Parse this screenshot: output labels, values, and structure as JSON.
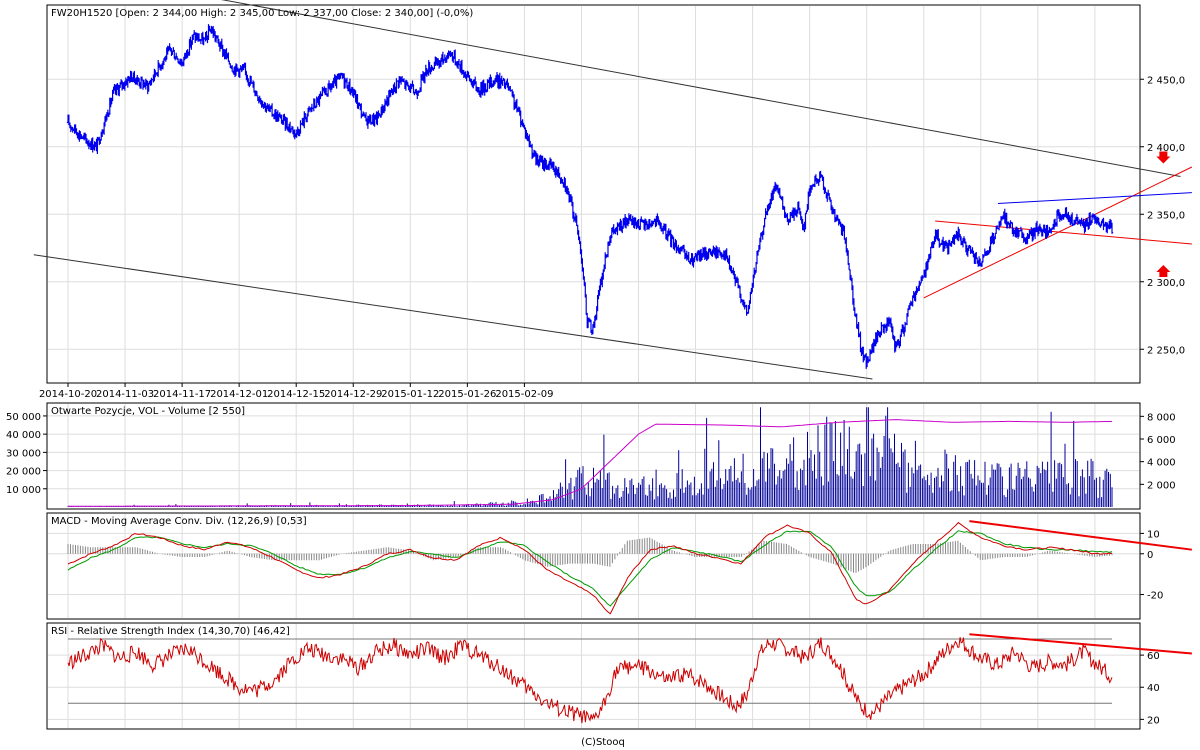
{
  "colors": {
    "price": "#0000ee",
    "volume": "#000099",
    "open_interest": "#cc00cc",
    "macd": "#cc0000",
    "signal": "#009900",
    "histogram": "#888888",
    "rsi": "#cc0000",
    "trend_lines": "#ee0000",
    "channel_lines": "#333333",
    "grid": "#dddddd"
  },
  "footer": "(C)Stooq",
  "chart_data": [
    {
      "type": "candlestick",
      "title": "FW20H1520 [Open: 2 344,00  High: 2 345,00  Low: 2 337,00  Close: 2 340,00] (-0,0%)",
      "x_tick_labels": [
        "2014-10-20",
        "2014-11-03",
        "2014-11-17",
        "2014-12-01",
        "2014-12-15",
        "2014-12-29",
        "2015-01-12",
        "2015-01-26",
        "2015-02-09"
      ],
      "y_tick_labels": [
        "2 450,0",
        "2 400,0",
        "2 350,0",
        "2 300,0",
        "2 250,0"
      ],
      "y_ticks": [
        2450,
        2400,
        2350,
        2300,
        2250
      ],
      "ylim": [
        2225,
        2505
      ],
      "grid": true,
      "price_path": [
        [
          0,
          2418
        ],
        [
          3,
          2405
        ],
        [
          5,
          2400
        ],
        [
          8,
          2440
        ],
        [
          11,
          2452
        ],
        [
          14,
          2445
        ],
        [
          16,
          2460
        ],
        [
          18,
          2472
        ],
        [
          20,
          2462
        ],
        [
          22,
          2482
        ],
        [
          24,
          2478
        ],
        [
          25,
          2488
        ],
        [
          27,
          2472
        ],
        [
          29,
          2458
        ],
        [
          31,
          2456
        ],
        [
          33,
          2440
        ],
        [
          35,
          2428
        ],
        [
          38,
          2418
        ],
        [
          40,
          2410
        ],
        [
          42,
          2425
        ],
        [
          45,
          2440
        ],
        [
          48,
          2452
        ],
        [
          50,
          2440
        ],
        [
          52,
          2420
        ],
        [
          54,
          2420
        ],
        [
          56,
          2435
        ],
        [
          58,
          2450
        ],
        [
          61,
          2440
        ],
        [
          63,
          2458
        ],
        [
          65,
          2462
        ],
        [
          67,
          2470
        ],
        [
          70,
          2452
        ],
        [
          72,
          2442
        ],
        [
          75,
          2450
        ],
        [
          77,
          2445
        ],
        [
          79,
          2425
        ],
        [
          82,
          2390
        ],
        [
          85,
          2385
        ],
        [
          87,
          2375
        ],
        [
          89,
          2345
        ],
        [
          90,
          2320
        ],
        [
          91,
          2270
        ],
        [
          92,
          2265
        ],
        [
          93,
          2290
        ],
        [
          95,
          2335
        ],
        [
          98,
          2345
        ],
        [
          101,
          2342
        ],
        [
          103,
          2345
        ],
        [
          106,
          2330
        ],
        [
          109,
          2315
        ],
        [
          112,
          2322
        ],
        [
          115,
          2322
        ],
        [
          118,
          2290
        ],
        [
          119,
          2275
        ],
        [
          120,
          2300
        ],
        [
          122,
          2345
        ],
        [
          124,
          2372
        ],
        [
          126,
          2345
        ],
        [
          128,
          2355
        ],
        [
          129,
          2340
        ],
        [
          130,
          2370
        ],
        [
          132,
          2378
        ],
        [
          133,
          2365
        ],
        [
          134,
          2352
        ],
        [
          136,
          2335
        ],
        [
          137,
          2310
        ],
        [
          138,
          2275
        ],
        [
          139,
          2250
        ],
        [
          140,
          2240
        ],
        [
          142,
          2262
        ],
        [
          144,
          2270
        ],
        [
          145,
          2250
        ],
        [
          146,
          2260
        ],
        [
          148,
          2288
        ],
        [
          150,
          2305
        ],
        [
          152,
          2335
        ],
        [
          154,
          2325
        ],
        [
          156,
          2335
        ],
        [
          158,
          2322
        ],
        [
          160,
          2312
        ],
        [
          162,
          2330
        ],
        [
          164,
          2348
        ],
        [
          166,
          2338
        ],
        [
          168,
          2332
        ],
        [
          170,
          2340
        ],
        [
          172,
          2335
        ],
        [
          174,
          2352
        ],
        [
          176,
          2345
        ],
        [
          178,
          2342
        ],
        [
          180,
          2348
        ],
        [
          182,
          2341
        ],
        [
          183,
          2340
        ]
      ],
      "lines": [
        {
          "name": "channel-upper",
          "from": [
            0,
            2530
          ],
          "to": [
            195,
            2378
          ]
        },
        {
          "name": "channel-lower",
          "from": [
            -6,
            2320
          ],
          "to": [
            141,
            2228
          ]
        },
        {
          "name": "trend-upper",
          "from": [
            150,
            2288
          ],
          "to": [
            197,
            2385
          ]
        },
        {
          "name": "trend-lower",
          "from": [
            152,
            2345
          ],
          "to": [
            197,
            2328
          ]
        },
        {
          "name": "resistance",
          "from": [
            163,
            2358
          ],
          "to": [
            197,
            2366
          ]
        }
      ],
      "annotations": [
        {
          "name": "arrow-down",
          "x": 192,
          "y": 2392,
          "direction": "down"
        },
        {
          "name": "arrow-up",
          "x": 192,
          "y": 2308,
          "direction": "up"
        }
      ]
    },
    {
      "type": "bar",
      "title": "Otwarte Pozycje, VOL - Volume [2 550]",
      "left_tick_labels": [
        "50 000",
        "40 000",
        "30 000",
        "20 000",
        "10 000"
      ],
      "left_ticks": [
        50000,
        40000,
        30000,
        20000,
        10000
      ],
      "left_ylim": [
        0,
        56000
      ],
      "right_tick_labels": [
        "8 000",
        "6 000",
        "4 000",
        "2 000"
      ],
      "right_ticks": [
        8000,
        6000,
        4000,
        2000
      ],
      "right_ylim": [
        0,
        9000
      ],
      "volume_path": [
        [
          0,
          50
        ],
        [
          70,
          200
        ],
        [
          80,
          500
        ],
        [
          85,
          1200
        ],
        [
          90,
          3000
        ],
        [
          95,
          2400
        ],
        [
          100,
          2000
        ],
        [
          110,
          2500
        ],
        [
          120,
          4000
        ],
        [
          125,
          3800
        ],
        [
          130,
          5600
        ],
        [
          140,
          7000
        ],
        [
          150,
          4000
        ],
        [
          160,
          3500
        ],
        [
          170,
          3000
        ],
        [
          180,
          3200
        ],
        [
          183,
          2550
        ]
      ],
      "open_interest_path": [
        [
          0,
          400
        ],
        [
          60,
          800
        ],
        [
          78,
          1500
        ],
        [
          85,
          4000
        ],
        [
          90,
          10000
        ],
        [
          95,
          25000
        ],
        [
          100,
          40000
        ],
        [
          103,
          45500
        ],
        [
          115,
          45000
        ],
        [
          125,
          44000
        ],
        [
          135,
          46500
        ],
        [
          145,
          48000
        ],
        [
          155,
          46500
        ],
        [
          165,
          47000
        ],
        [
          175,
          46500
        ],
        [
          183,
          47000
        ]
      ]
    },
    {
      "type": "line",
      "title": "MACD - Moving Average Conv. Div. (12,26,9) [0,53]",
      "y_tick_labels": [
        "10",
        "0",
        "-20"
      ],
      "y_ticks": [
        10,
        0,
        -20
      ],
      "ylim": [
        -32,
        20
      ],
      "series": [
        {
          "name": "MACD",
          "x": [
            0,
            4,
            8,
            12,
            16,
            20,
            24,
            28,
            32,
            36,
            40,
            44,
            48,
            52,
            56,
            60,
            64,
            68,
            72,
            76,
            80,
            84,
            88,
            92,
            95,
            98,
            102,
            106,
            110,
            114,
            118,
            122,
            126,
            130,
            134,
            138,
            140,
            144,
            148,
            152,
            156,
            160,
            164,
            168,
            172,
            176,
            180,
            183
          ],
          "values": [
            -5,
            0,
            4,
            10,
            8,
            4,
            2,
            6,
            3,
            -2,
            -8,
            -12,
            -10,
            -6,
            0,
            2,
            -2,
            -3,
            4,
            8,
            2,
            -8,
            -14,
            -20,
            -30,
            -12,
            2,
            4,
            0,
            -2,
            -5,
            8,
            14,
            10,
            0,
            -22,
            -25,
            -18,
            -5,
            5,
            15,
            8,
            4,
            2,
            3,
            2,
            0,
            0.53
          ]
        },
        {
          "name": "Signal",
          "x": [
            0,
            4,
            8,
            12,
            16,
            20,
            24,
            28,
            32,
            36,
            40,
            44,
            48,
            52,
            56,
            60,
            64,
            68,
            72,
            76,
            80,
            84,
            88,
            92,
            95,
            98,
            102,
            106,
            110,
            114,
            118,
            122,
            126,
            130,
            134,
            138,
            140,
            144,
            148,
            152,
            156,
            160,
            164,
            168,
            172,
            176,
            180,
            183
          ],
          "values": [
            -8,
            -2,
            2,
            8,
            8,
            5,
            3,
            5,
            4,
            0,
            -6,
            -10,
            -10,
            -7,
            -2,
            1,
            0,
            -2,
            2,
            6,
            4,
            -4,
            -11,
            -17,
            -26,
            -16,
            -3,
            3,
            1,
            -1,
            -4,
            4,
            11,
            11,
            3,
            -16,
            -21,
            -19,
            -8,
            2,
            11,
            10,
            5,
            3,
            2,
            2,
            1,
            1
          ]
        }
      ],
      "annotations": [
        {
          "name": "macd-downtrend",
          "from": [
            158,
            16
          ],
          "to": [
            197,
            2
          ]
        }
      ]
    },
    {
      "type": "line",
      "title": "RSI - Relative Strength Index (14,30,70) [46,42]",
      "y_tick_labels": [
        "60",
        "40",
        "20"
      ],
      "y_ticks": [
        60,
        40,
        20
      ],
      "ylim": [
        14,
        80
      ],
      "levels": [
        70,
        30
      ],
      "series": [
        {
          "name": "RSI",
          "x": [
            0,
            3,
            6,
            9,
            12,
            15,
            18,
            21,
            24,
            27,
            30,
            33,
            36,
            39,
            42,
            45,
            48,
            51,
            54,
            57,
            60,
            63,
            66,
            69,
            72,
            75,
            78,
            81,
            84,
            87,
            90,
            92,
            94,
            96,
            99,
            102,
            105,
            108,
            111,
            114,
            117,
            119,
            121,
            123,
            126,
            129,
            132,
            135,
            137,
            139,
            141,
            144,
            147,
            150,
            153,
            156,
            158,
            160,
            163,
            166,
            169,
            172,
            175,
            178,
            181,
            183
          ],
          "values": [
            55,
            60,
            66,
            58,
            62,
            54,
            60,
            64,
            56,
            48,
            40,
            38,
            44,
            56,
            64,
            60,
            58,
            52,
            62,
            66,
            60,
            64,
            58,
            66,
            60,
            54,
            46,
            38,
            30,
            25,
            22,
            18,
            30,
            50,
            54,
            50,
            44,
            48,
            44,
            36,
            28,
            35,
            60,
            68,
            64,
            58,
            68,
            55,
            40,
            28,
            24,
            34,
            42,
            48,
            60,
            70,
            64,
            58,
            54,
            62,
            52,
            56,
            54,
            62,
            52,
            46.42
          ]
        }
      ],
      "annotations": [
        {
          "name": "rsi-downtrend",
          "from": [
            158,
            73
          ],
          "to": [
            197,
            61
          ]
        }
      ]
    }
  ]
}
